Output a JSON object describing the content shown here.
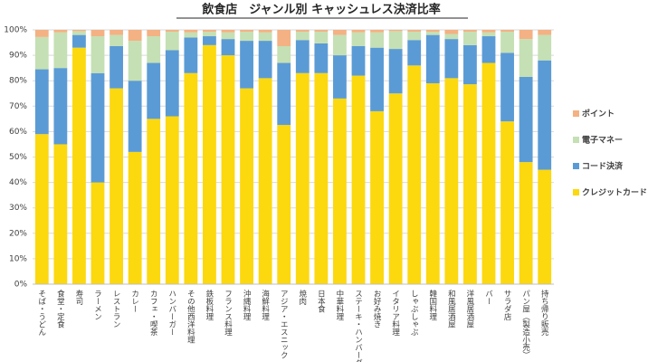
{
  "chart_data": {
    "type": "stacked_bar_100",
    "title": "飲食店　ジャンル別 キャッシュレス決済比率",
    "categories": [
      "そば・うどん",
      "食堂・定食",
      "寿司",
      "ラーメン",
      "レストラン",
      "カレー",
      "カフェ・喫茶",
      "ハンバーガー",
      "その他西洋料理",
      "鉄板料理",
      "フランス料理",
      "沖縄料理",
      "海鮮料理",
      "アジア・エスニック",
      "焼肉",
      "日本食",
      "中華料理",
      "ステーキ・ハンバーグ",
      "お好み焼き",
      "イタリア料理",
      "しゃぶしゃぶ",
      "韓国料理",
      "和風居酒屋",
      "洋風居酒屋",
      "バー",
      "サラダ店",
      "パン屋（製造小売）",
      "持ち帰り販売"
    ],
    "series": [
      {
        "name": "クレジットカード",
        "color": "#fcd80f",
        "values": [
          59,
          55,
          93,
          40,
          77,
          52,
          65,
          66,
          83,
          94,
          90,
          77,
          81,
          62.6,
          83,
          83,
          73,
          82,
          68,
          75,
          86,
          79,
          81,
          78.6,
          87,
          64,
          48,
          45
        ]
      },
      {
        "name": "コード決済",
        "color": "#5b9bd5",
        "values": [
          25.5,
          30,
          5,
          43,
          16.6,
          28,
          22,
          26,
          14,
          3.5,
          6.4,
          18.7,
          14.7,
          24.4,
          13,
          11.7,
          17,
          11.6,
          25,
          17.5,
          10,
          19,
          15.4,
          15.4,
          10.5,
          27,
          33.5,
          43
        ]
      },
      {
        "name": "電子マネー",
        "color": "#c5e0b4",
        "values": [
          12.7,
          14,
          1.5,
          14.5,
          4.4,
          15.7,
          10.5,
          7.3,
          2,
          1.8,
          2.6,
          3.6,
          3.3,
          6.6,
          3.3,
          4.6,
          8,
          5.4,
          6,
          7,
          3.3,
          1.3,
          2,
          5.3,
          1.5,
          8.3,
          14.9,
          10
        ]
      },
      {
        "name": "ポイント",
        "color": "#f4b183",
        "values": [
          2.8,
          1,
          0.5,
          2.5,
          2,
          4.3,
          2.5,
          0.7,
          1,
          0.7,
          1,
          0.7,
          1,
          6.4,
          0.7,
          0.7,
          2,
          1,
          1,
          0.5,
          0.7,
          0.7,
          1.6,
          0.7,
          1,
          0.7,
          3.6,
          2
        ]
      }
    ],
    "ylim": [
      0,
      100
    ],
    "yticks": [
      {
        "value": 0,
        "label": "0%"
      },
      {
        "value": 10,
        "label": "10%"
      },
      {
        "value": 20,
        "label": "20%"
      },
      {
        "value": 30,
        "label": "30%"
      },
      {
        "value": 40,
        "label": "40%"
      },
      {
        "value": 50,
        "label": "50%"
      },
      {
        "value": 60,
        "label": "60%"
      },
      {
        "value": 70,
        "label": "70%"
      },
      {
        "value": 80,
        "label": "80%"
      },
      {
        "value": 90,
        "label": "90%"
      },
      {
        "value": 100,
        "label": "100%"
      }
    ],
    "grid": true,
    "legend": "right"
  }
}
